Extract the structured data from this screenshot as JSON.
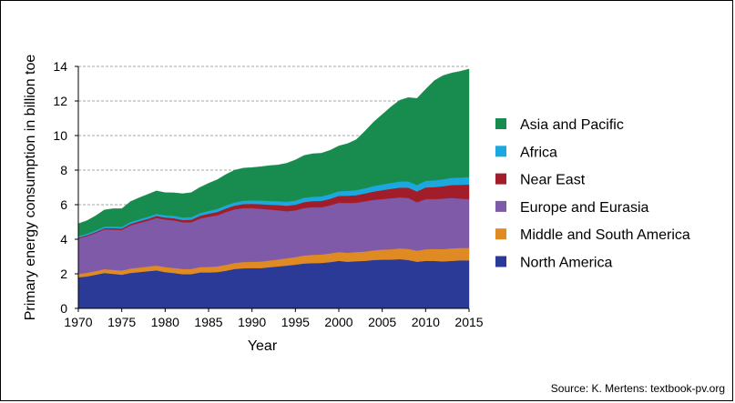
{
  "chart_data": {
    "type": "area",
    "stacked": true,
    "xlabel": "Year",
    "ylabel": "Primary energy consumption in billion toe",
    "ylim": [
      0,
      14
    ],
    "xlim": [
      1970,
      2015
    ],
    "y_ticks": [
      "0",
      "2",
      "4",
      "6",
      "8",
      "10",
      "12",
      "14"
    ],
    "x_ticks": [
      "1970",
      "1975",
      "1980",
      "1985",
      "1990",
      "1995",
      "2000",
      "2005",
      "2010",
      "2015"
    ],
    "grid": "horizontal dashed",
    "legend_position": "right",
    "x": [
      1970,
      1971,
      1972,
      1973,
      1974,
      1975,
      1976,
      1977,
      1978,
      1979,
      1980,
      1981,
      1982,
      1983,
      1984,
      1985,
      1986,
      1987,
      1988,
      1989,
      1990,
      1991,
      1992,
      1993,
      1994,
      1995,
      1996,
      1997,
      1998,
      1999,
      2000,
      2001,
      2002,
      2003,
      2004,
      2005,
      2006,
      2007,
      2008,
      2009,
      2010,
      2011,
      2012,
      2013,
      2014,
      2015
    ],
    "series": [
      {
        "name": "North America",
        "color": "#2a3a96",
        "values": [
          1.8,
          1.85,
          1.95,
          2.05,
          2.0,
          1.95,
          2.05,
          2.1,
          2.15,
          2.2,
          2.1,
          2.05,
          1.98,
          1.98,
          2.08,
          2.08,
          2.1,
          2.18,
          2.28,
          2.32,
          2.33,
          2.33,
          2.38,
          2.43,
          2.48,
          2.53,
          2.6,
          2.62,
          2.63,
          2.68,
          2.75,
          2.7,
          2.73,
          2.75,
          2.8,
          2.82,
          2.82,
          2.85,
          2.8,
          2.7,
          2.75,
          2.75,
          2.72,
          2.75,
          2.78,
          2.78
        ]
      },
      {
        "name": "Middle and South America",
        "color": "#e08a23",
        "values": [
          0.2,
          0.21,
          0.21,
          0.22,
          0.23,
          0.24,
          0.25,
          0.26,
          0.27,
          0.28,
          0.29,
          0.29,
          0.3,
          0.3,
          0.31,
          0.32,
          0.33,
          0.34,
          0.35,
          0.36,
          0.37,
          0.38,
          0.39,
          0.4,
          0.42,
          0.44,
          0.46,
          0.48,
          0.49,
          0.5,
          0.51,
          0.52,
          0.53,
          0.54,
          0.56,
          0.58,
          0.6,
          0.62,
          0.64,
          0.64,
          0.67,
          0.69,
          0.71,
          0.72,
          0.72,
          0.72
        ]
      },
      {
        "name": "Europe and Eurasia",
        "color": "#7e5aa8",
        "values": [
          2.05,
          2.12,
          2.2,
          2.3,
          2.33,
          2.35,
          2.5,
          2.58,
          2.65,
          2.75,
          2.75,
          2.75,
          2.7,
          2.7,
          2.8,
          2.9,
          2.95,
          3.05,
          3.1,
          3.12,
          3.1,
          3.05,
          2.95,
          2.85,
          2.72,
          2.7,
          2.75,
          2.75,
          2.73,
          2.78,
          2.85,
          2.88,
          2.85,
          2.9,
          2.92,
          2.92,
          2.95,
          2.95,
          2.95,
          2.8,
          2.9,
          2.88,
          2.92,
          2.92,
          2.85,
          2.82
        ]
      },
      {
        "name": "Near East",
        "color": "#a11d2a",
        "values": [
          0.05,
          0.06,
          0.06,
          0.07,
          0.08,
          0.08,
          0.09,
          0.1,
          0.11,
          0.12,
          0.12,
          0.13,
          0.14,
          0.15,
          0.17,
          0.18,
          0.2,
          0.21,
          0.22,
          0.24,
          0.25,
          0.27,
          0.28,
          0.3,
          0.32,
          0.33,
          0.34,
          0.36,
          0.37,
          0.38,
          0.4,
          0.42,
          0.44,
          0.46,
          0.48,
          0.52,
          0.55,
          0.57,
          0.6,
          0.63,
          0.68,
          0.7,
          0.72,
          0.75,
          0.8,
          0.85
        ]
      },
      {
        "name": "Africa",
        "color": "#1ba8de",
        "values": [
          0.08,
          0.08,
          0.09,
          0.09,
          0.1,
          0.1,
          0.11,
          0.11,
          0.12,
          0.12,
          0.13,
          0.14,
          0.14,
          0.15,
          0.15,
          0.16,
          0.17,
          0.18,
          0.18,
          0.19,
          0.2,
          0.21,
          0.22,
          0.22,
          0.23,
          0.24,
          0.25,
          0.25,
          0.26,
          0.27,
          0.27,
          0.28,
          0.29,
          0.3,
          0.32,
          0.33,
          0.34,
          0.35,
          0.36,
          0.37,
          0.38,
          0.39,
          0.4,
          0.41,
          0.42,
          0.43
        ]
      },
      {
        "name": "Asia and Pacific",
        "color": "#178c4e",
        "values": [
          0.72,
          0.76,
          0.85,
          0.97,
          1.03,
          1.05,
          1.18,
          1.25,
          1.3,
          1.33,
          1.31,
          1.33,
          1.38,
          1.42,
          1.49,
          1.6,
          1.7,
          1.79,
          1.87,
          1.89,
          1.9,
          1.96,
          2.04,
          2.1,
          2.23,
          2.35,
          2.45,
          2.49,
          2.5,
          2.54,
          2.62,
          2.73,
          2.92,
          3.3,
          3.7,
          4.05,
          4.4,
          4.7,
          4.85,
          5.01,
          5.3,
          5.77,
          6.0,
          6.07,
          6.15,
          6.25
        ]
      }
    ],
    "legend_order": [
      "Asia and Pacific",
      "Africa",
      "Near East",
      "Europe and Eurasia",
      "Middle and South America",
      "North America"
    ]
  },
  "source_note": "Source: K. Mertens: textbook-pv.org"
}
